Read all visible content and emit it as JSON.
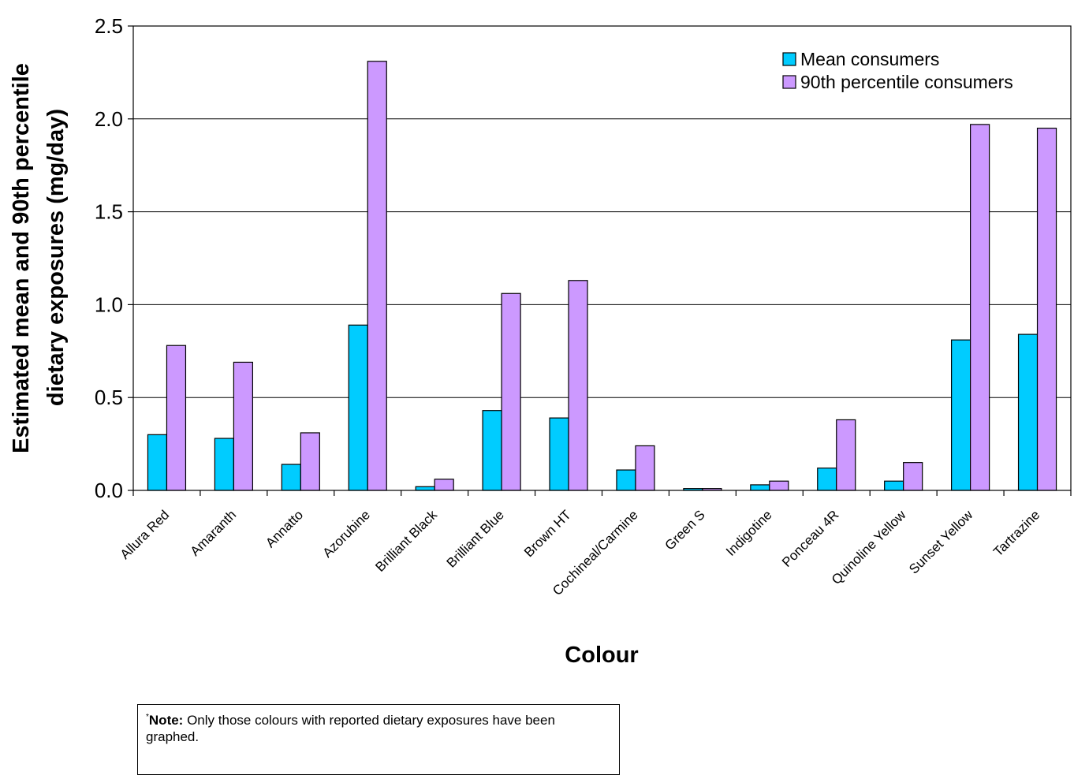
{
  "chart_data": {
    "type": "bar",
    "categories": [
      "Allura Red",
      "Amaranth",
      "Annatto",
      "Azorubine",
      "Brilliant Black",
      "Brilliant Blue",
      "Brown HT",
      "Cochineal/Carmine",
      "Green S",
      "Indigotine",
      "Ponceau 4R",
      "Quinoline Yellow",
      "Sunset Yellow",
      "Tartrazine"
    ],
    "series": [
      {
        "name": "Mean consumers",
        "color": "#00ccff",
        "values": [
          0.3,
          0.28,
          0.14,
          0.89,
          0.02,
          0.43,
          0.39,
          0.11,
          0.01,
          0.03,
          0.12,
          0.05,
          0.81,
          0.84
        ]
      },
      {
        "name": "90th percentile consumers",
        "color": "#cc99ff",
        "values": [
          0.78,
          0.69,
          0.31,
          2.31,
          0.06,
          1.06,
          1.13,
          0.24,
          0.01,
          0.05,
          0.38,
          0.15,
          1.97,
          1.95
        ]
      }
    ],
    "xlabel": "Colour",
    "ylabel_line1": "Estimated mean and 90th percentile",
    "ylabel_line2": "dietary exposures (mg/day)",
    "ylim": [
      0,
      2.5
    ],
    "yticks": [
      "0.0",
      "0.5",
      "1.0",
      "1.5",
      "2.0",
      "2.5"
    ],
    "ytick_values": [
      0,
      0.5,
      1.0,
      1.5,
      2.0,
      2.5
    ],
    "grid": true,
    "legend_position": "top-right"
  },
  "note": {
    "marker": "*",
    "label": "Note:",
    "text": " Only those colours with reported dietary exposures have been graphed."
  }
}
